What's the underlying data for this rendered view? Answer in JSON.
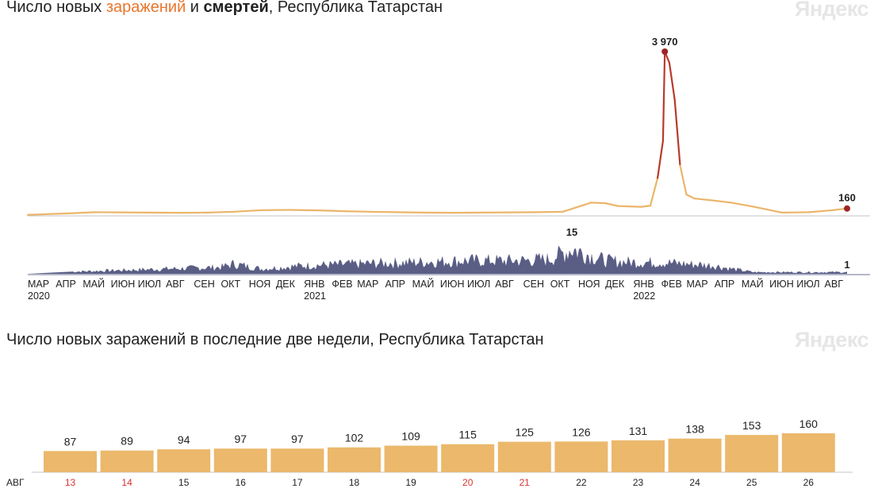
{
  "colors": {
    "cases_line": "#ebb56a",
    "peak_line": "#b83a2e",
    "marker": "#9e2424",
    "deaths_fill": "#5a5e85",
    "bar": "#ebb86c",
    "weekend": "#d83232",
    "weekday": "#222222",
    "axis": "#c4c4c4",
    "logo": "#e6e6e6"
  },
  "top_chart": {
    "title_prefix": "Число новых ",
    "title_infections": "заражений",
    "title_middle": " и ",
    "title_deaths": "смертей",
    "title_suffix": ", Республика Татарстан",
    "logo": "Яндекс",
    "peak_label": "3 970",
    "last_cases_label": "160",
    "deaths_peak_label": "15",
    "last_deaths_label": "1"
  },
  "bottom_chart": {
    "title": "Число новых заражений в последние две недели, Республика Татарстан",
    "logo": "Яндекс",
    "month_label": "АВГ"
  },
  "chart_data": [
    {
      "type": "line",
      "title": "Число новых заражений и смертей, Республика Татарстан",
      "series": [
        {
          "name": "заражений",
          "x": [
            "2020-03-01",
            "2020-04-15",
            "2020-05-15",
            "2020-06-15",
            "2020-07-15",
            "2020-08-15",
            "2020-09-15",
            "2020-10-15",
            "2020-11-15",
            "2020-12-15",
            "2021-01-15",
            "2021-02-15",
            "2021-03-15",
            "2021-04-15",
            "2021-05-15",
            "2021-06-15",
            "2021-07-15",
            "2021-08-15",
            "2021-09-15",
            "2021-10-15",
            "2021-11-01",
            "2021-11-15",
            "2021-12-01",
            "2021-12-15",
            "2022-01-10",
            "2022-01-20",
            "2022-01-28",
            "2022-02-03",
            "2022-02-05",
            "2022-02-10",
            "2022-02-16",
            "2022-02-22",
            "2022-03-01",
            "2022-03-10",
            "2022-03-20",
            "2022-04-01",
            "2022-04-20",
            "2022-05-15",
            "2022-06-15",
            "2022-07-15",
            "2022-08-10",
            "2022-08-26"
          ],
          "values": [
            5,
            40,
            70,
            65,
            60,
            55,
            60,
            80,
            120,
            125,
            115,
            95,
            80,
            70,
            60,
            55,
            60,
            65,
            70,
            80,
            200,
            300,
            290,
            220,
            200,
            230,
            900,
            1800,
            3970,
            3700,
            2800,
            1200,
            500,
            400,
            380,
            350,
            300,
            200,
            60,
            70,
            120,
            160
          ]
        },
        {
          "name": "смертей",
          "x": [
            "2020-04-01",
            "2020-06-01",
            "2020-08-01",
            "2020-10-01",
            "2020-10-15",
            "2020-11-15",
            "2021-01-01",
            "2021-03-01",
            "2021-05-01",
            "2021-07-01",
            "2021-09-01",
            "2021-10-01",
            "2021-10-25",
            "2021-11-10",
            "2021-12-01",
            "2022-01-01",
            "2022-02-01",
            "2022-03-01",
            "2022-04-01",
            "2022-04-20",
            "2022-05-15",
            "2022-06-15",
            "2022-08-26"
          ],
          "values": [
            1,
            2,
            3,
            4,
            6,
            3,
            5,
            6,
            7,
            8,
            8,
            9,
            15,
            12,
            8,
            7,
            7,
            6,
            5,
            3,
            1,
            1,
            1
          ]
        }
      ],
      "x_tick_labels": [
        "МАР",
        "АПР",
        "МАЙ",
        "ИЮН",
        "ИЮЛ",
        "АВГ",
        "СЕН",
        "ОКТ",
        "НОЯ",
        "ДЕК",
        "ЯНВ",
        "ФЕВ",
        "МАР",
        "АПР",
        "МАЙ",
        "ИЮН",
        "ИЮЛ",
        "АВГ",
        "СЕН",
        "ОКТ",
        "НОЯ",
        "ДЕК",
        "ЯНВ",
        "ФЕВ",
        "МАР",
        "АПР",
        "МАЙ",
        "ИЮН",
        "ИЮЛ",
        "АВГ"
      ],
      "year_labels": [
        "2020",
        "2021",
        "2022"
      ],
      "annotations": [
        "3 970",
        "160",
        "15",
        "1"
      ]
    },
    {
      "type": "bar",
      "title": "Число новых заражений в последние две недели, Республика Татарстан",
      "xlabel": "АВГ",
      "categories": [
        "13",
        "14",
        "15",
        "16",
        "17",
        "18",
        "19",
        "20",
        "21",
        "22",
        "23",
        "24",
        "25",
        "26"
      ],
      "values": [
        87,
        89,
        94,
        97,
        97,
        102,
        109,
        115,
        125,
        126,
        131,
        138,
        153,
        160
      ],
      "weekend": [
        true,
        true,
        false,
        false,
        false,
        false,
        false,
        true,
        true,
        false,
        false,
        false,
        false,
        false
      ]
    }
  ]
}
